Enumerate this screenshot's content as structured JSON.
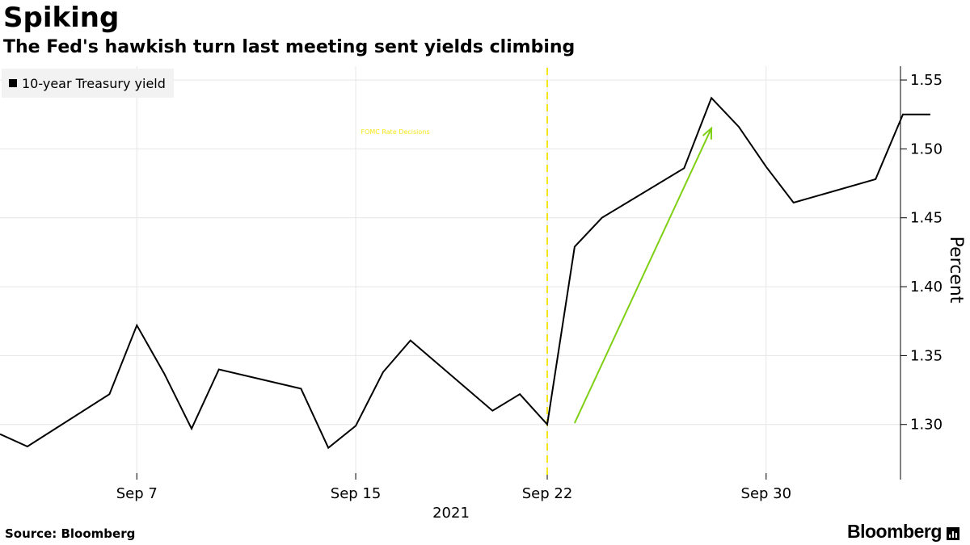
{
  "header": {
    "title": "Spiking",
    "subtitle": "The Fed's hawkish turn last meeting sent yields climbing"
  },
  "legend": {
    "label": "10-year Treasury yield"
  },
  "footer": {
    "source": "Source: Bloomberg",
    "brand": "Bloomberg"
  },
  "colors": {
    "series": "#000000",
    "event_line": "#f5e61a",
    "arrow": "#7fd014",
    "grid": "#e6e6e6"
  },
  "chart_data": {
    "type": "line",
    "title": "Spiking",
    "subtitle": "The Fed's hawkish turn last meeting sent yields climbing",
    "ylabel": "Percent",
    "xlabel": "2021",
    "ylim": [
      1.26,
      1.56
    ],
    "yticks": [
      1.3,
      1.35,
      1.4,
      1.45,
      1.5,
      1.55
    ],
    "ytick_labels": [
      "1.30",
      "1.35",
      "1.40",
      "1.45",
      "1.50",
      "1.55"
    ],
    "x_ticks": [
      {
        "label": "Sep 7",
        "date": "2021-09-07"
      },
      {
        "label": "Sep 15",
        "date": "2021-09-15"
      },
      {
        "label": "Sep 22",
        "date": "2021-09-22"
      },
      {
        "label": "Sep 30",
        "date": "2021-09-30"
      }
    ],
    "x_year_label": "2021",
    "grid": "vertical",
    "legend_position": "top-left",
    "series": [
      {
        "name": "10-year Treasury yield",
        "points": [
          {
            "date": "2021-09-02",
            "y": 1.293
          },
          {
            "date": "2021-09-03",
            "y": 1.284
          },
          {
            "date": "2021-09-06",
            "y": 1.322
          },
          {
            "date": "2021-09-07",
            "y": 1.372
          },
          {
            "date": "2021-09-08",
            "y": 1.337
          },
          {
            "date": "2021-09-09",
            "y": 1.297
          },
          {
            "date": "2021-09-10",
            "y": 1.34
          },
          {
            "date": "2021-09-13",
            "y": 1.326
          },
          {
            "date": "2021-09-14",
            "y": 1.283
          },
          {
            "date": "2021-09-15",
            "y": 1.299
          },
          {
            "date": "2021-09-16",
            "y": 1.338
          },
          {
            "date": "2021-09-17",
            "y": 1.361
          },
          {
            "date": "2021-09-20",
            "y": 1.31
          },
          {
            "date": "2021-09-21",
            "y": 1.322
          },
          {
            "date": "2021-09-22",
            "y": 1.3
          },
          {
            "date": "2021-09-23",
            "y": 1.429
          },
          {
            "date": "2021-09-24",
            "y": 1.45
          },
          {
            "date": "2021-09-27",
            "y": 1.486
          },
          {
            "date": "2021-09-28",
            "y": 1.537
          },
          {
            "date": "2021-09-29",
            "y": 1.516
          },
          {
            "date": "2021-09-30",
            "y": 1.487
          },
          {
            "date": "2021-10-01",
            "y": 1.461
          },
          {
            "date": "2021-10-04",
            "y": 1.478
          },
          {
            "date": "2021-10-05",
            "y": 1.525
          },
          {
            "date": "2021-10-06",
            "y": 1.525
          }
        ]
      }
    ],
    "annotations": [
      {
        "type": "vline",
        "date": "2021-09-22",
        "label": "FOMC Rate Decisions"
      },
      {
        "type": "arrow",
        "from": {
          "date": "2021-09-23",
          "y": 1.301
        },
        "to": {
          "date": "2021-09-28",
          "y": 1.515
        }
      }
    ]
  }
}
